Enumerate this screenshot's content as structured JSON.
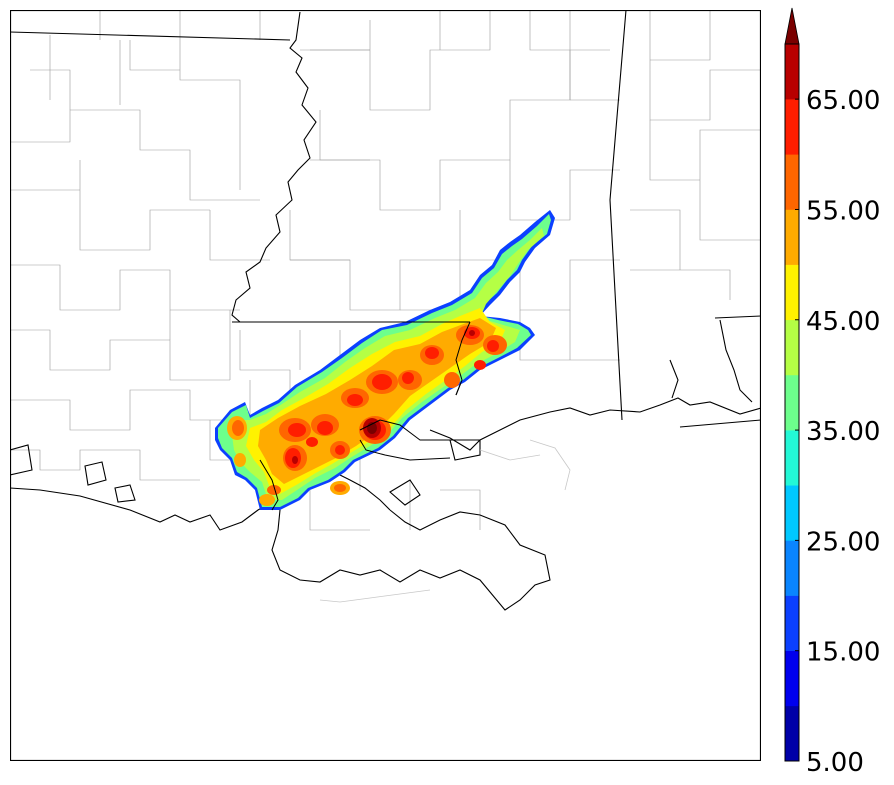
{
  "colorbar": {
    "tick_labels": [
      "5.00",
      "15.00",
      "25.00",
      "35.00",
      "45.00",
      "55.00",
      "65.00"
    ],
    "levels": [
      5,
      10,
      15,
      20,
      25,
      30,
      35,
      40,
      45,
      50,
      55,
      60,
      65,
      70
    ],
    "colors": [
      "#0000a8",
      "#0000ee",
      "#0b40ff",
      "#0a85ff",
      "#00c8ff",
      "#23f8d6",
      "#6dff8c",
      "#b5ff45",
      "#fff200",
      "#ffab00",
      "#ff6600",
      "#ff1e00",
      "#b80000"
    ],
    "extend_color": "#7a0000",
    "extend": "max"
  },
  "colors": {
    "county_lines": "#9a9a9a",
    "state_lines": "#000000",
    "coast_lines": "#000000",
    "gulf_faint": "#c8c8c8",
    "background": "#ffffff"
  }
}
